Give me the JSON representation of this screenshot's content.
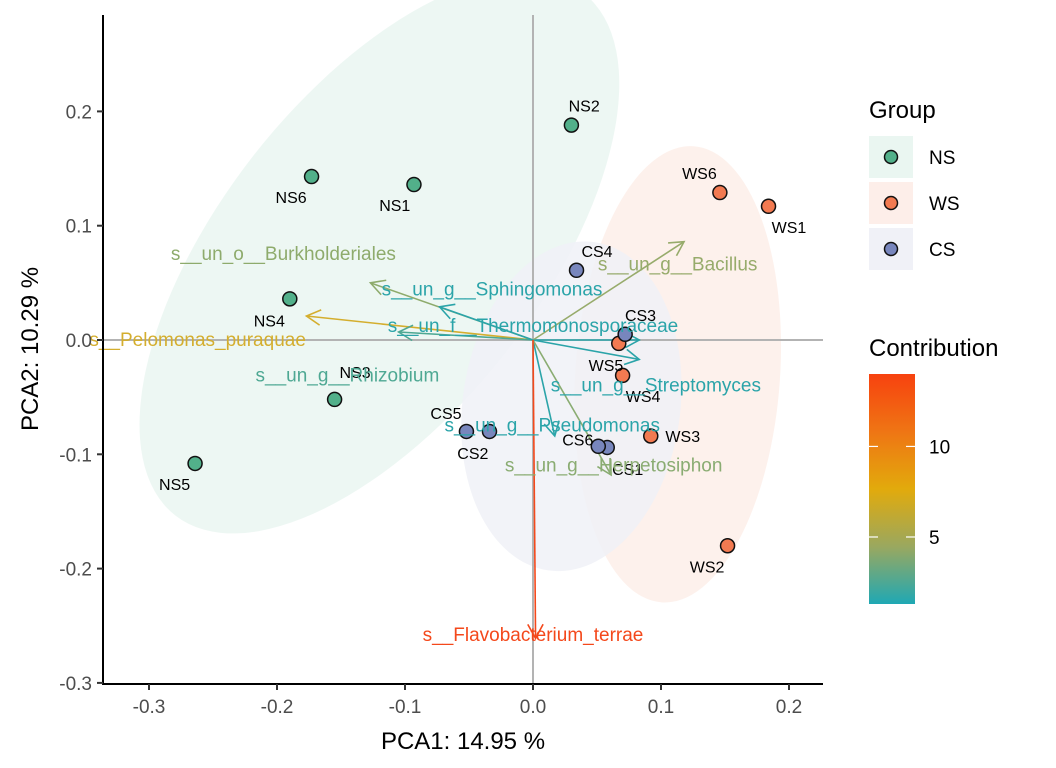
{
  "chart_data": {
    "type": "scatter",
    "subtype": "pca-biplot",
    "title": "",
    "xlabel": "PCA1:  14.95 %",
    "ylabel": "PCA2:  10.29 %",
    "xlim": [
      -0.335,
      0.226
    ],
    "ylim": [
      -0.3,
      0.284
    ],
    "xticks": [
      -0.3,
      -0.2,
      -0.1,
      0.0,
      0.1,
      0.2
    ],
    "xtick_labels": [
      "-0.3",
      "-0.2",
      "-0.1",
      "0.0",
      "0.1",
      "0.2"
    ],
    "yticks": [
      -0.3,
      -0.2,
      -0.1,
      0.0,
      0.1,
      0.2
    ],
    "ytick_labels": [
      "-0.3",
      "-0.2",
      "-0.1",
      "0.0",
      "0.1",
      "0.2"
    ],
    "grid": false,
    "reference_lines": {
      "x": 0,
      "y": 0
    },
    "groups": [
      {
        "name": "NS",
        "color": "#52b08a",
        "ellipse_color": "#eaf6f1",
        "ellipse": {
          "center": [
            -0.12,
            0.075
          ],
          "rx": 0.125,
          "ry": 0.29,
          "angle_deg": 38
        }
      },
      {
        "name": "WS",
        "color": "#f27a51",
        "ellipse_color": "#fdeee9",
        "ellipse": {
          "center": [
            0.113,
            -0.03
          ],
          "rx": 0.08,
          "ry": 0.2,
          "angle_deg": 4
        }
      },
      {
        "name": "CS",
        "color": "#7886bd",
        "ellipse_color": "#f0f1f7",
        "ellipse": {
          "center": [
            0.03,
            -0.058
          ],
          "rx": 0.085,
          "ry": 0.145,
          "angle_deg": 8
        }
      }
    ],
    "points": [
      {
        "label": "NS1",
        "group": "NS",
        "x": -0.093,
        "y": 0.136,
        "label_dx": -0.015,
        "label_dy": -0.018
      },
      {
        "label": "NS2",
        "group": "NS",
        "x": 0.03,
        "y": 0.188,
        "label_dx": 0.01,
        "label_dy": 0.017
      },
      {
        "label": "NS3",
        "group": "NS",
        "x": -0.155,
        "y": -0.052,
        "label_dx": 0.016,
        "label_dy": 0.024
      },
      {
        "label": "NS4",
        "group": "NS",
        "x": -0.19,
        "y": 0.036,
        "label_dx": -0.016,
        "label_dy": -0.019
      },
      {
        "label": "NS5",
        "group": "NS",
        "x": -0.264,
        "y": -0.108,
        "label_dx": -0.016,
        "label_dy": -0.018
      },
      {
        "label": "NS6",
        "group": "NS",
        "x": -0.173,
        "y": 0.143,
        "label_dx": -0.016,
        "label_dy": -0.018
      },
      {
        "label": "WS1",
        "group": "WS",
        "x": 0.184,
        "y": 0.117,
        "label_dx": 0.016,
        "label_dy": -0.018
      },
      {
        "label": "WS2",
        "group": "WS",
        "x": 0.152,
        "y": -0.18,
        "label_dx": -0.016,
        "label_dy": -0.018
      },
      {
        "label": "WS3",
        "group": "WS",
        "x": 0.092,
        "y": -0.084,
        "label_dx": 0.025,
        "label_dy": 0.0
      },
      {
        "label": "WS4",
        "group": "WS",
        "x": 0.07,
        "y": -0.031,
        "label_dx": 0.016,
        "label_dy": -0.018
      },
      {
        "label": "WS5",
        "group": "WS",
        "x": 0.067,
        "y": -0.003,
        "label_dx": -0.01,
        "label_dy": -0.019
      },
      {
        "label": "WS6",
        "group": "WS",
        "x": 0.146,
        "y": 0.129,
        "label_dx": -0.016,
        "label_dy": 0.017
      },
      {
        "label": "CS1",
        "group": "CS",
        "x": 0.058,
        "y": -0.094,
        "label_dx": 0.016,
        "label_dy": -0.019
      },
      {
        "label": "CS2",
        "group": "CS",
        "x": -0.034,
        "y": -0.08,
        "label_dx": -0.013,
        "label_dy": -0.019
      },
      {
        "label": "CS3",
        "group": "CS",
        "x": 0.072,
        "y": 0.005,
        "label_dx": 0.012,
        "label_dy": 0.017
      },
      {
        "label": "CS4",
        "group": "CS",
        "x": 0.034,
        "y": 0.061,
        "label_dx": 0.016,
        "label_dy": 0.017
      },
      {
        "label": "CS5",
        "group": "CS",
        "x": -0.052,
        "y": -0.08,
        "label_dx": -0.016,
        "label_dy": 0.016
      },
      {
        "label": "CS6",
        "group": "CS",
        "x": 0.051,
        "y": -0.093,
        "label_dx": -0.016,
        "label_dy": 0.006
      }
    ],
    "variables": [
      {
        "name": "s__un_o__Burkholderiales",
        "x": -0.127,
        "y": 0.05,
        "contribution": 4.8,
        "color": "#8eab6c",
        "label_x": -0.195,
        "label_y": 0.076
      },
      {
        "name": "s__Pelomonas_puraquae",
        "x": -0.177,
        "y": 0.021,
        "contribution": 8.2,
        "color": "#d4ae2e",
        "label_x": -0.262,
        "label_y": 0.001
      },
      {
        "name": "s__un_g__Rhizobium",
        "x": -0.105,
        "y": 0.007,
        "contribution": 3.0,
        "color": "#4ea893",
        "label_x": -0.145,
        "label_y": -0.03
      },
      {
        "name": "s__un_g__Sphingomonas",
        "x": -0.073,
        "y": 0.029,
        "contribution": 1.8,
        "color": "#2ba4a9",
        "label_x": -0.032,
        "label_y": 0.045
      },
      {
        "name": "s__un_f__Thermomonosporaceae",
        "x": 0.083,
        "y": 0.0,
        "contribution": 1.5,
        "color": "#2ba4a9",
        "label_x": 0.0,
        "label_y": 0.013
      },
      {
        "name": "s__un_g__Bacillus",
        "x": 0.118,
        "y": 0.086,
        "contribution": 4.5,
        "color": "#97ab6b",
        "label_x": 0.113,
        "label_y": 0.067
      },
      {
        "name": "s__un_g__Streptomyces",
        "x": 0.083,
        "y": -0.017,
        "contribution": 1.5,
        "color": "#2ba4a9",
        "label_x": 0.096,
        "label_y": -0.039
      },
      {
        "name": "s__un_g__Pseudomonas",
        "x": 0.017,
        "y": -0.084,
        "contribution": 1.7,
        "color": "#2ba4a9",
        "label_x": 0.015,
        "label_y": -0.074
      },
      {
        "name": "s__un_g__Herpetosiphon",
        "x": 0.061,
        "y": -0.118,
        "contribution": 4.0,
        "color": "#8aac72",
        "label_x": 0.063,
        "label_y": -0.109
      },
      {
        "name": "s__Flavobacterium_terrae",
        "x": 0.002,
        "y": -0.261,
        "contribution": 13.5,
        "color": "#f4481b",
        "label_x": 0.0,
        "label_y": -0.257
      }
    ],
    "legend": {
      "group_title": "Group",
      "group_entries": [
        "NS",
        "WS",
        "CS"
      ],
      "colorbar_title": "Contribution",
      "colorbar_range": [
        1.3,
        14.0
      ],
      "colorbar_ticks": [
        5,
        10
      ],
      "colorbar_tick_labels": [
        "5",
        "10"
      ],
      "colorbar_colors": [
        "#1fa8b4",
        "#9aa85f",
        "#e2aa0c",
        "#ef7514",
        "#f7420f"
      ],
      "placement": "right"
    }
  }
}
